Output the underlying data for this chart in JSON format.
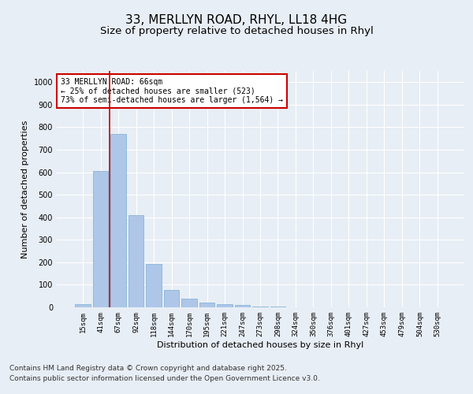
{
  "title_line1": "33, MERLLYN ROAD, RHYL, LL18 4HG",
  "title_line2": "Size of property relative to detached houses in Rhyl",
  "xlabel": "Distribution of detached houses by size in Rhyl",
  "ylabel": "Number of detached properties",
  "categories": [
    "15sqm",
    "41sqm",
    "67sqm",
    "92sqm",
    "118sqm",
    "144sqm",
    "170sqm",
    "195sqm",
    "221sqm",
    "247sqm",
    "273sqm",
    "298sqm",
    "324sqm",
    "350sqm",
    "376sqm",
    "401sqm",
    "427sqm",
    "453sqm",
    "479sqm",
    "504sqm",
    "530sqm"
  ],
  "values": [
    15,
    605,
    770,
    410,
    193,
    78,
    40,
    20,
    15,
    10,
    5,
    3,
    0,
    0,
    0,
    0,
    0,
    0,
    0,
    0,
    0
  ],
  "bar_color": "#aec6e8",
  "bar_edge_color": "#7aafd4",
  "red_line_x": 1.5,
  "annotation_text": "33 MERLLYN ROAD: 66sqm\n← 25% of detached houses are smaller (523)\n73% of semi-detached houses are larger (1,564) →",
  "annotation_box_color": "#ffffff",
  "annotation_box_edge": "#cc0000",
  "ylim": [
    0,
    1050
  ],
  "yticks": [
    0,
    100,
    200,
    300,
    400,
    500,
    600,
    700,
    800,
    900,
    1000
  ],
  "bg_color": "#e8eef5",
  "plot_bg_color": "#e8eef5",
  "grid_color": "#ffffff",
  "footer_line1": "Contains HM Land Registry data © Crown copyright and database right 2025.",
  "footer_line2": "Contains public sector information licensed under the Open Government Licence v3.0.",
  "title_fontsize": 11,
  "subtitle_fontsize": 9.5,
  "tick_fontsize": 6.5,
  "label_fontsize": 8,
  "footer_fontsize": 6.5,
  "annot_fontsize": 7
}
